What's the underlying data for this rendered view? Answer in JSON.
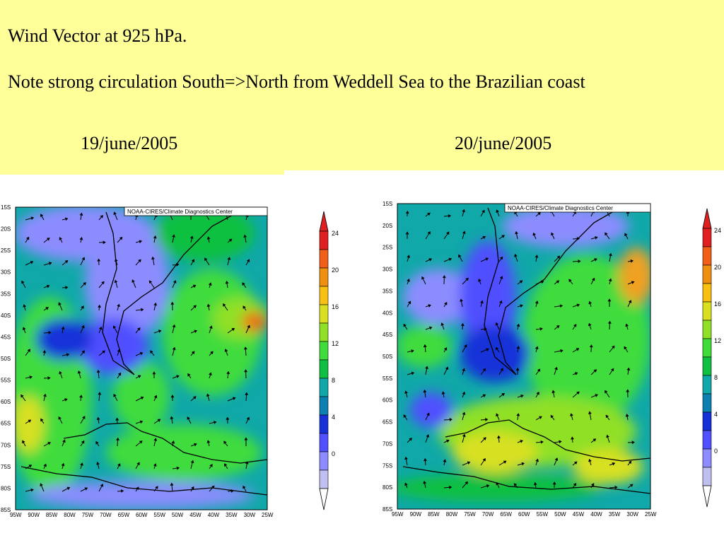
{
  "slide": {
    "title": "Wind Vector at 925 hPa.",
    "note": "Note strong circulation South=>North from Weddell Sea to the Brazilian coast",
    "dates": [
      "19/june/2005",
      "20/june/2005"
    ]
  },
  "maps": [
    {
      "credit": "NOAA-CIRES/Climate Diagnostics Center",
      "lat_labels": [
        "15S",
        "20S",
        "25S",
        "30S",
        "35S",
        "40S",
        "45S",
        "50S",
        "55S",
        "60S",
        "65S",
        "70S",
        "75S",
        "80S",
        "85S"
      ],
      "lon_labels": [
        "95W",
        "90W",
        "85W",
        "80W",
        "75W",
        "70W",
        "65W",
        "60W",
        "55W",
        "50W",
        "45W",
        "40W",
        "35W",
        "30W",
        "25W"
      ]
    },
    {
      "credit": "NOAA-CIRES/Climate Diagnostics Center",
      "lat_labels": [
        "15S",
        "20S",
        "25S",
        "30S",
        "35S",
        "40S",
        "45S",
        "50S",
        "55S",
        "60S",
        "65S",
        "70S",
        "75S",
        "80S",
        "85S"
      ],
      "lon_labels": [
        "95W",
        "90W",
        "85W",
        "80W",
        "75W",
        "70W",
        "65W",
        "60W",
        "55W",
        "50W",
        "45W",
        "40W",
        "35W",
        "30W",
        "25W"
      ]
    }
  ],
  "colorbar": {
    "labels": [
      "24",
      "20",
      "16",
      "12",
      "8",
      "4",
      "0"
    ],
    "colors": [
      "#c0c0f0",
      "#8c8cff",
      "#5050ff",
      "#1830d8",
      "#0c80b0",
      "#10a8a8",
      "#10c040",
      "#40dc3c",
      "#90e028",
      "#d8e020",
      "#f8c010",
      "#f09010",
      "#f06018",
      "#e02020"
    ]
  }
}
